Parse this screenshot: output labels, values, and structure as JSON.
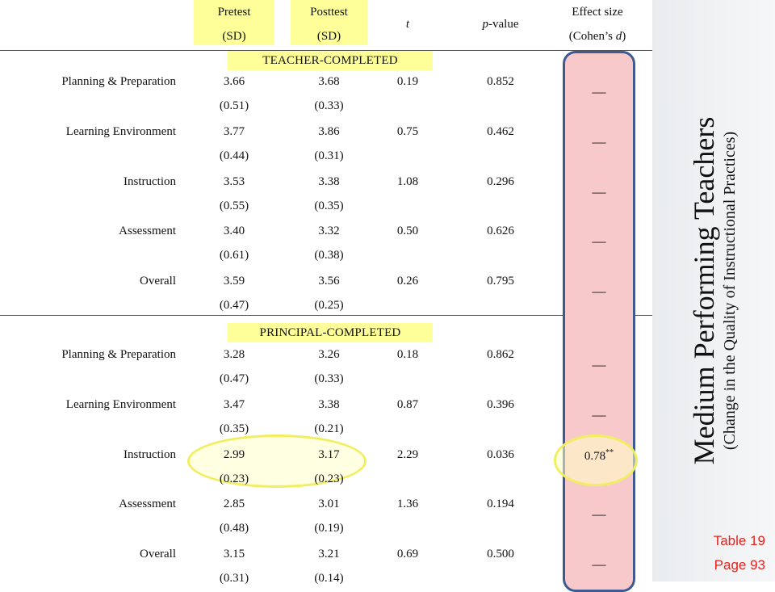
{
  "header": {
    "pretest_line1": "Pretest",
    "pretest_line2": "(SD)",
    "posttest_line1": "Posttest",
    "posttest_line2": "(SD)",
    "t": "t",
    "pvalue": "p-value",
    "effect_line1": "Effect size",
    "effect_line2": "(Cohen’s d)"
  },
  "sections": [
    {
      "title": "TEACHER-COMPLETED",
      "rows": [
        {
          "label": "Planning & Preparation",
          "pre": "3.66",
          "pre_sd": "(0.51)",
          "post": "3.68",
          "post_sd": "(0.33)",
          "t": "0.19",
          "p": "0.852",
          "effect": "—"
        },
        {
          "label": "Learning Environment",
          "pre": "3.77",
          "pre_sd": "(0.44)",
          "post": "3.86",
          "post_sd": "(0.31)",
          "t": "0.75",
          "p": "0.462",
          "effect": "—"
        },
        {
          "label": "Instruction",
          "pre": "3.53",
          "pre_sd": "(0.55)",
          "post": "3.38",
          "post_sd": "(0.35)",
          "t": "1.08",
          "p": "0.296",
          "effect": "—"
        },
        {
          "label": "Assessment",
          "pre": "3.40",
          "pre_sd": "(0.61)",
          "post": "3.32",
          "post_sd": "(0.38)",
          "t": "0.50",
          "p": "0.626",
          "effect": "—"
        },
        {
          "label": "Overall",
          "pre": "3.59",
          "pre_sd": "(0.47)",
          "post": "3.56",
          "post_sd": "(0.25)",
          "t": "0.26",
          "p": "0.795",
          "effect": "—"
        }
      ]
    },
    {
      "title": "PRINCIPAL-COMPLETED",
      "rows": [
        {
          "label": "Planning & Preparation",
          "pre": "3.28",
          "pre_sd": "(0.47)",
          "post": "3.26",
          "post_sd": "(0.33)",
          "t": "0.18",
          "p": "0.862",
          "effect": "—"
        },
        {
          "label": "Learning Environment",
          "pre": "3.47",
          "pre_sd": "(0.35)",
          "post": "3.38",
          "post_sd": "(0.21)",
          "t": "0.87",
          "p": "0.396",
          "effect": "—"
        },
        {
          "label": "Instruction",
          "pre": "2.99",
          "pre_sd": "(0.23)",
          "post": "3.17",
          "post_sd": "(0.23)",
          "t": "2.29",
          "p": "0.036",
          "effect": "0.78**"
        },
        {
          "label": "Assessment",
          "pre": "2.85",
          "pre_sd": "(0.48)",
          "post": "3.01",
          "post_sd": "(0.19)",
          "t": "1.36",
          "p": "0.194",
          "effect": "—"
        },
        {
          "label": "Overall",
          "pre": "3.15",
          "pre_sd": "(0.31)",
          "post": "3.21",
          "post_sd": "(0.14)",
          "t": "0.69",
          "p": "0.500",
          "effect": "—"
        }
      ]
    }
  ],
  "sidebar": {
    "title": "Medium Performing Teachers",
    "subtitle": "(Change in the Quality of Instructional Practices)",
    "table_ref": "Table 19",
    "page_ref": "Page 93"
  },
  "colors": {
    "highlight_yellow": "#ffff99",
    "effect_column_fill": "#f8c9cb",
    "effect_column_border": "#3d5b92",
    "circle_highlight": "#f2ee62",
    "ref_red": "#e8211c"
  }
}
